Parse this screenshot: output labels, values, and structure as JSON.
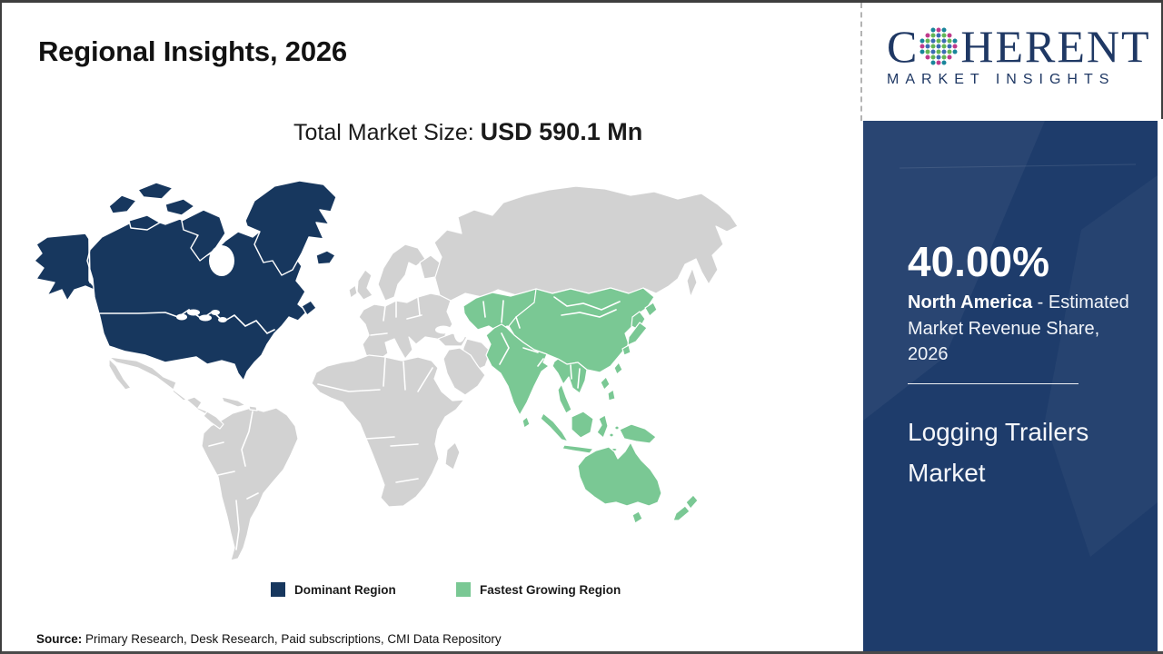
{
  "header": {
    "title": "Regional Insights, 2026"
  },
  "subtitle": {
    "label": "Total Market Size: ",
    "value": "USD 590.1 Mn"
  },
  "logo": {
    "prefix": "C",
    "suffix": "HERENT",
    "tagline": "MARKET INSIGHTS",
    "navy": "#1f3864",
    "globe_palette": {
      "T": "#19859a",
      "M": "#bf3a8c",
      "G": "#63b655",
      "B": "#3c6cb4"
    },
    "globe_matrix": [
      "..TMT..",
      ".MGBGM.",
      "TGBGBGT",
      "MBGBGBM",
      "TGBGBGT",
      ".MGBGM.",
      "..TMT.."
    ]
  },
  "map": {
    "dominant_color": "#17375e",
    "fastest_growing_color": "#7ac894",
    "neutral_color": "#d2d2d2",
    "ocean_color": "#ffffff",
    "dominant_regions": [
      "United States",
      "Canada",
      "Alaska",
      "Greenland",
      "Iceland"
    ],
    "fastest_growing_regions": [
      "Central Asia",
      "China",
      "Mongolia",
      "India",
      "South Asia",
      "Southeast Asia",
      "Korea",
      "Japan",
      "Philippines",
      "Indonesia",
      "Papua New Guinea",
      "Australia",
      "New Zealand"
    ],
    "neutral_regions": [
      "Mexico",
      "Central America",
      "South America",
      "Europe",
      "Russia",
      "Middle East",
      "Africa"
    ]
  },
  "legend": {
    "items": [
      {
        "label": "Dominant Region",
        "color": "#17375e"
      },
      {
        "label": "Fastest Growing Region",
        "color": "#7ac894"
      }
    ]
  },
  "sidebar": {
    "background": "#1e3c6b",
    "stat_value": "40.00%",
    "stat_region_bold": "North America",
    "stat_rest": " - Estimated Market Revenue Share, 2026",
    "market_name": "Logging Trailers Market"
  },
  "source": {
    "label": "Source:",
    "text": " Primary Research, Desk Research, Paid subscriptions, CMI Data Repository"
  }
}
